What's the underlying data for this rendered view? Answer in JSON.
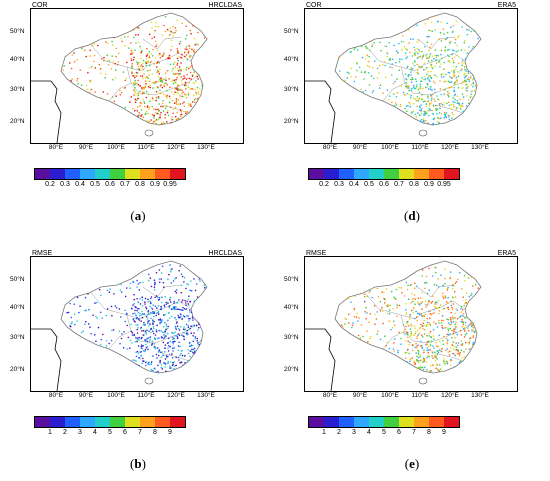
{
  "panels": [
    {
      "id": "a",
      "corner_left": "COR",
      "corner_right": "HRCLDAS",
      "caption": "a",
      "colorbar_labels": [
        "0.2",
        "0.3",
        "0.4",
        "0.5",
        "0.6",
        "0.7",
        "0.8",
        "0.9",
        "0.95"
      ],
      "colorbar_colors": [
        "#5b0fa0",
        "#2a1fd0",
        "#1f60ff",
        "#2fa8ff",
        "#23d0c8",
        "#3fcf3f",
        "#dfdf1f",
        "#ffa01f",
        "#ff5a1f",
        "#e0151f"
      ]
    },
    {
      "id": "d",
      "corner_left": "COR",
      "corner_right": "ERA5",
      "caption": "d",
      "colorbar_labels": [
        "0.2",
        "0.3",
        "0.4",
        "0.5",
        "0.6",
        "0.7",
        "0.8",
        "0.9",
        "0.95"
      ],
      "colorbar_colors": [
        "#5b0fa0",
        "#2a1fd0",
        "#1f60ff",
        "#2fa8ff",
        "#23d0c8",
        "#3fcf3f",
        "#dfdf1f",
        "#ffa01f",
        "#ff5a1f",
        "#e0151f"
      ]
    },
    {
      "id": "b",
      "corner_left": "RMSE",
      "corner_right": "HRCLDAS",
      "caption": "b",
      "colorbar_labels": [
        "1",
        "2",
        "3",
        "4",
        "5",
        "6",
        "7",
        "8",
        "9"
      ],
      "colorbar_colors": [
        "#5b0fa0",
        "#2a1fd0",
        "#1f60ff",
        "#2fa8ff",
        "#23d0c8",
        "#3fcf3f",
        "#dfdf1f",
        "#ffa01f",
        "#ff5a1f",
        "#e0151f"
      ]
    },
    {
      "id": "e",
      "corner_left": "RMSE",
      "corner_right": "ERA5",
      "caption": "e",
      "colorbar_labels": [
        "1",
        "2",
        "3",
        "4",
        "5",
        "6",
        "7",
        "8",
        "9"
      ],
      "colorbar_colors": [
        "#5b0fa0",
        "#2a1fd0",
        "#1f60ff",
        "#2fa8ff",
        "#23d0c8",
        "#3fcf3f",
        "#dfdf1f",
        "#ffa01f",
        "#ff5a1f",
        "#e0151f"
      ]
    }
  ],
  "lat_labels": [
    "50°N",
    "40°N",
    "30°N",
    "20°N"
  ],
  "lon_labels": [
    "80°E",
    "90°E",
    "100°E",
    "110°E",
    "120°E",
    "130°E"
  ],
  "dot_palette": {
    "a": [
      "#ff5a1f",
      "#e0151f",
      "#ffa01f",
      "#dfdf1f",
      "#3fcf3f"
    ],
    "d": [
      "#3fcf3f",
      "#dfdf1f",
      "#23d0c8",
      "#2fa8ff",
      "#ffa01f"
    ],
    "b": [
      "#1f60ff",
      "#2a1fd0",
      "#2fa8ff",
      "#23d0c8",
      "#5b0fa0"
    ],
    "e": [
      "#ffa01f",
      "#ff5a1f",
      "#dfdf1f",
      "#3fcf3f",
      "#2fa8ff"
    ]
  }
}
